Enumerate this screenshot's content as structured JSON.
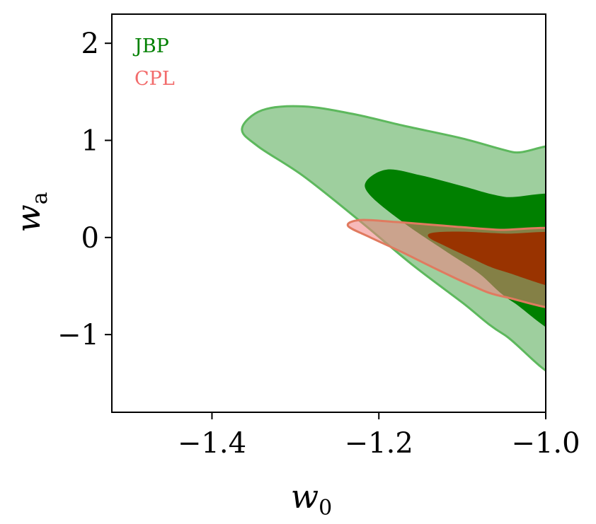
{
  "chart_data": {
    "type": "contour",
    "xlabel": "w",
    "xlabel_subscript": "0",
    "ylabel": "w",
    "ylabel_subscript": "a",
    "xlim": [
      -1.52,
      -1.0
    ],
    "ylim": [
      -1.8,
      2.3
    ],
    "xticks": [
      -1.4,
      -1.2,
      -1.0
    ],
    "xtick_labels": [
      "−1.4",
      "−1.2",
      "−1.0"
    ],
    "yticks": [
      2,
      1,
      0,
      -1
    ],
    "ytick_labels": [
      "2",
      "1",
      "0",
      "−1"
    ],
    "grid": false,
    "legend": {
      "placement": "top-left"
    },
    "series": [
      {
        "name": "JBP",
        "label_color": "#008000",
        "contours": [
          {
            "level": "outer",
            "fill": "#008000",
            "fill_opacity": 0.38,
            "stroke": "#5db85d",
            "points": [
              [
                -1.0,
                0.75
              ],
              [
                -1.04,
                0.88
              ],
              [
                -1.1,
                1.02
              ],
              [
                -1.17,
                1.15
              ],
              [
                -1.23,
                1.27
              ],
              [
                -1.29,
                1.35
              ],
              [
                -1.34,
                1.31
              ],
              [
                -1.364,
                1.12
              ],
              [
                -1.345,
                0.94
              ],
              [
                -1.29,
                0.63
              ],
              [
                -1.22,
                0.15
              ],
              [
                -1.16,
                -0.28
              ],
              [
                -1.1,
                -0.67
              ],
              [
                -1.05,
                -1.0
              ],
              [
                -1.0,
                -1.37
              ]
            ]
          },
          {
            "level": "inner",
            "fill": "#008000",
            "fill_opacity": 1.0,
            "stroke": "none",
            "points": [
              [
                -1.0,
                0.33
              ],
              [
                -1.05,
                0.42
              ],
              [
                -1.1,
                0.53
              ],
              [
                -1.15,
                0.64
              ],
              [
                -1.19,
                0.7
              ],
              [
                -1.215,
                0.58
              ],
              [
                -1.21,
                0.43
              ],
              [
                -1.17,
                0.15
              ],
              [
                -1.12,
                -0.14
              ],
              [
                -1.08,
                -0.37
              ],
              [
                -1.04,
                -0.66
              ],
              [
                -1.0,
                -0.98
              ]
            ]
          }
        ]
      },
      {
        "name": "CPL",
        "label_color": "#f26b6b",
        "contours": [
          {
            "level": "outer",
            "fill": "#f08080",
            "fill_opacity": 0.55,
            "stroke": "#e07a5f",
            "points": [
              [
                -1.0,
                0.03
              ],
              [
                -1.06,
                0.08
              ],
              [
                -1.12,
                0.12
              ],
              [
                -1.18,
                0.16
              ],
              [
                -1.222,
                0.18
              ],
              [
                -1.237,
                0.12
              ],
              [
                -1.21,
                0.0
              ],
              [
                -1.17,
                -0.16
              ],
              [
                -1.13,
                -0.33
              ],
              [
                -1.09,
                -0.49
              ],
              [
                -1.05,
                -0.61
              ],
              [
                -1.0,
                -0.7
              ]
            ]
          },
          {
            "level": "inner",
            "fill": "#993300",
            "fill_opacity": 1.0,
            "stroke": "none",
            "points": [
              [
                -1.0,
                0.01
              ],
              [
                -1.05,
                0.04
              ],
              [
                -1.1,
                0.06
              ],
              [
                -1.135,
                0.05
              ],
              [
                -1.14,
                0.0
              ],
              [
                -1.12,
                -0.09
              ],
              [
                -1.09,
                -0.21
              ],
              [
                -1.05,
                -0.35
              ],
              [
                -1.0,
                -0.52
              ]
            ]
          }
        ]
      }
    ]
  }
}
